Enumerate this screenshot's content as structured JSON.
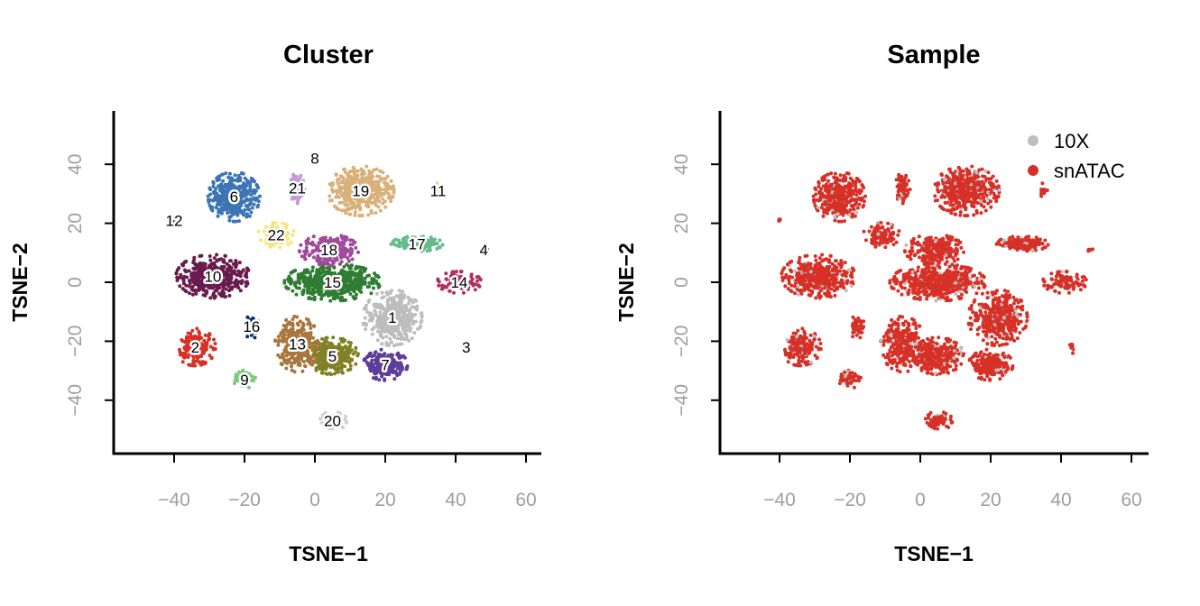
{
  "chart_data": [
    {
      "type": "scatter",
      "title": "Cluster",
      "xlabel": "TSNE−1",
      "ylabel": "TSNE−2",
      "xlim": [
        -57,
        64
      ],
      "ylim": [
        -58,
        58
      ],
      "xticks": [
        -40,
        -20,
        0,
        20,
        40,
        60
      ],
      "xtick_labels": [
        "−40",
        "−20",
        "0",
        "20",
        "40",
        "60"
      ],
      "yticks": [
        -40,
        -20,
        0,
        20,
        40
      ],
      "ytick_labels": [
        "−40",
        "−20",
        "0",
        "20",
        "40"
      ],
      "grid": false,
      "clusters": [
        {
          "label": "1",
          "x": 22,
          "y": -12,
          "rx": 8,
          "ry": 9,
          "n": 420,
          "color": "#bdbdbd"
        },
        {
          "label": "2",
          "x": -34,
          "y": -22,
          "rx": 5.5,
          "ry": 6,
          "n": 200,
          "color": "#d73027"
        },
        {
          "label": "3",
          "x": 43,
          "y": -22,
          "rx": 0.6,
          "ry": 2.5,
          "n": 10,
          "color": "#f1c40f"
        },
        {
          "label": "4",
          "x": 48,
          "y": 11,
          "rx": 1.2,
          "ry": 0.5,
          "n": 6,
          "color": "#67001f"
        },
        {
          "label": "5",
          "x": 5,
          "y": -25,
          "rx": 7,
          "ry": 6,
          "n": 320,
          "color": "#808026"
        },
        {
          "label": "6",
          "x": -23,
          "y": 29,
          "rx": 7,
          "ry": 8,
          "n": 420,
          "color": "#3c74b4"
        },
        {
          "label": "7",
          "x": 20,
          "y": -28,
          "rx": 6,
          "ry": 5,
          "n": 240,
          "color": "#5e3c99"
        },
        {
          "label": "8",
          "x": 0,
          "y": 42,
          "rx": 0.3,
          "ry": 0.3,
          "n": 0,
          "color": "#8c8c8c"
        },
        {
          "label": "9",
          "x": -20,
          "y": -33,
          "rx": 3,
          "ry": 3,
          "n": 50,
          "color": "#7fc97f"
        },
        {
          "label": "10",
          "x": -29,
          "y": 2,
          "rx": 10,
          "ry": 7,
          "n": 440,
          "color": "#6a1b4d"
        },
        {
          "label": "11",
          "x": 35,
          "y": 31,
          "rx": 1.5,
          "ry": 2.5,
          "n": 12,
          "color": "#e5d88a"
        },
        {
          "label": "12",
          "x": -40,
          "y": 21,
          "rx": 0.5,
          "ry": 0.4,
          "n": 6,
          "color": "#444444"
        },
        {
          "label": "13",
          "x": -5,
          "y": -21,
          "rx": 6,
          "ry": 9,
          "n": 300,
          "color": "#a8763e"
        },
        {
          "label": "14",
          "x": 41,
          "y": 0,
          "rx": 6,
          "ry": 3.5,
          "n": 110,
          "color": "#b03060"
        },
        {
          "label": "15",
          "x": 5,
          "y": 0,
          "rx": 13,
          "ry": 6,
          "n": 560,
          "color": "#2e7d32"
        },
        {
          "label": "16",
          "x": -18,
          "y": -15,
          "rx": 2,
          "ry": 4,
          "n": 50,
          "color": "#08306b"
        },
        {
          "label": "17",
          "x": 29,
          "y": 13,
          "rx": 7,
          "ry": 2.5,
          "n": 140,
          "color": "#66bb8a"
        },
        {
          "label": "18",
          "x": 4,
          "y": 11,
          "rx": 8,
          "ry": 5,
          "n": 260,
          "color": "#a04a9b"
        },
        {
          "label": "19",
          "x": 13,
          "y": 31,
          "rx": 9,
          "ry": 8,
          "n": 440,
          "color": "#d9b07a"
        },
        {
          "label": "20",
          "x": 5,
          "y": -47,
          "rx": 4,
          "ry": 3,
          "n": 60,
          "color": "#d0d0d0"
        },
        {
          "label": "21",
          "x": -5,
          "y": 32,
          "rx": 2,
          "ry": 5,
          "n": 70,
          "color": "#c49bd1"
        },
        {
          "label": "22",
          "x": -11,
          "y": 16,
          "rx": 5,
          "ry": 4,
          "n": 110,
          "color": "#f7e57a"
        }
      ]
    },
    {
      "type": "scatter",
      "title": "Sample",
      "xlabel": "TSNE−1",
      "ylabel": "TSNE−2",
      "xlim": [
        -57,
        64
      ],
      "ylim": [
        -58,
        58
      ],
      "xticks": [
        -40,
        -20,
        0,
        20,
        40,
        60
      ],
      "xtick_labels": [
        "−40",
        "−20",
        "0",
        "20",
        "40",
        "60"
      ],
      "yticks": [
        -40,
        -20,
        0,
        20,
        40
      ],
      "ytick_labels": [
        "−40",
        "−20",
        "0",
        "20",
        "40"
      ],
      "grid": false,
      "legend_position": "top-right",
      "series": [
        {
          "name": "10X",
          "color": "#bebebe"
        },
        {
          "name": "snATAC",
          "color": "#d73027"
        }
      ]
    }
  ]
}
